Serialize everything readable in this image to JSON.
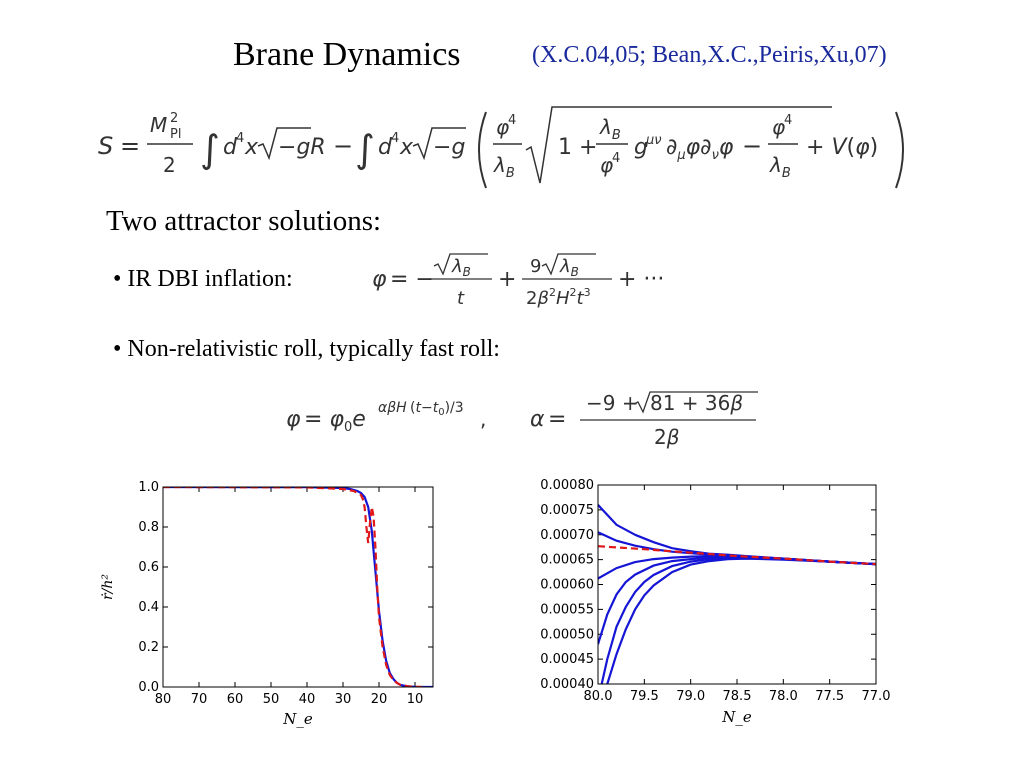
{
  "slide": {
    "title": "Brane Dynamics",
    "citation": "(X.C.04,05; Bean,X.C.,Peiris,Xu,07)",
    "heading": "Two attractor solutions:",
    "bullet1": "• IR DBI inflation:",
    "bullet2": "• Non-relativistic roll, typically fast roll:"
  },
  "equations": {
    "action": "S = (M_Pl^2/2) ∫ d^4x √(−g) R − ∫ d^4x √(−g) ( (φ^4/λ_B) √(1 + (λ_B/φ^4) g^{μν} ∂_μφ ∂_νφ) − φ^4/λ_B + V(φ) )",
    "ir_dbi": "φ = −√λ_B / t + 9√λ_B / (2β^2 H^2 t^3) + ···",
    "nonrel_phi": "φ = φ_0 e^{αβH(t−t_0)/3} ,",
    "nonrel_alpha": "α = (−9 + √(81 + 36β)) / (2β)"
  },
  "chart_data": [
    {
      "type": "line",
      "xlabel": "N_e",
      "ylabel": "ṙ/h²",
      "xlim": [
        80,
        5
      ],
      "ylim": [
        0.0,
        1.0
      ],
      "x_ticks": [
        "80",
        "70",
        "60",
        "50",
        "40",
        "30",
        "20",
        "10"
      ],
      "y_ticks": [
        "0.0",
        "0.2",
        "0.4",
        "0.6",
        "0.8",
        "1.0"
      ],
      "grid": false,
      "series": [
        {
          "style": "solid",
          "color": "#1515d6",
          "x": [
            80,
            40,
            30,
            28,
            26,
            25,
            24,
            23,
            22,
            21,
            20,
            19,
            18,
            17,
            16,
            15,
            14,
            12,
            10,
            8,
            5
          ],
          "y": [
            1.0,
            0.999,
            0.995,
            0.99,
            0.98,
            0.97,
            0.95,
            0.9,
            0.78,
            0.58,
            0.38,
            0.23,
            0.13,
            0.07,
            0.04,
            0.02,
            0.01,
            0.003,
            0.001,
            0.0,
            0.0
          ]
        },
        {
          "style": "dashed",
          "color": "#e01818",
          "x": [
            80,
            40,
            30,
            27,
            25,
            24.5,
            24,
            23.5,
            23,
            22.5,
            22,
            21.5,
            21,
            20.5,
            20,
            19,
            18,
            17,
            16,
            15,
            14,
            12,
            10,
            8
          ],
          "y": [
            1.0,
            0.998,
            0.99,
            0.98,
            0.96,
            0.94,
            0.9,
            0.8,
            0.72,
            0.82,
            0.9,
            0.85,
            0.7,
            0.5,
            0.35,
            0.2,
            0.11,
            0.06,
            0.035,
            0.02,
            0.01,
            0.004,
            0.001,
            0.0
          ]
        }
      ]
    },
    {
      "type": "line",
      "xlabel": "N_e",
      "xlim": [
        80.0,
        77.0
      ],
      "ylim": [
        0.0004,
        0.0008
      ],
      "x_ticks": [
        "80.0",
        "79.5",
        "79.0",
        "78.5",
        "78.0",
        "77.5",
        "77.0"
      ],
      "y_ticks": [
        "0.00040",
        "0.00045",
        "0.00050",
        "0.00055",
        "0.00060",
        "0.00065",
        "0.00070",
        "0.00075",
        "0.00080"
      ],
      "grid": false,
      "series": [
        {
          "style": "solid",
          "color": "#1515d6",
          "x": [
            80.0,
            79.8,
            79.6,
            79.4,
            79.2,
            79.0,
            78.8,
            78.6,
            78.4,
            78.0,
            77.5,
            77.0
          ],
          "y": [
            0.00076,
            0.00072,
            0.0007,
            0.000685,
            0.000673,
            0.000667,
            0.000662,
            0.00066,
            0.000657,
            0.000652,
            0.000646,
            0.000641
          ]
        },
        {
          "style": "solid",
          "color": "#1515d6",
          "x": [
            80.0,
            79.8,
            79.6,
            79.4,
            79.2,
            79.0,
            78.8,
            78.6,
            78.4,
            78.0,
            77.5,
            77.0
          ],
          "y": [
            0.000705,
            0.000688,
            0.000678,
            0.000671,
            0.000666,
            0.000663,
            0.00066,
            0.000658,
            0.000656,
            0.000652,
            0.000646,
            0.000641
          ]
        },
        {
          "style": "solid",
          "color": "#1515d6",
          "x": [
            80.0,
            79.8,
            79.6,
            79.4,
            79.2,
            79.0,
            78.8,
            78.6,
            78.4,
            78.0,
            77.5,
            77.0
          ],
          "y": [
            0.000612,
            0.000633,
            0.000645,
            0.000651,
            0.000654,
            0.000656,
            0.000657,
            0.000657,
            0.000655,
            0.000652,
            0.000646,
            0.000641
          ]
        },
        {
          "style": "solid",
          "color": "#1515d6",
          "x": [
            80.0,
            79.9,
            79.8,
            79.7,
            79.6,
            79.4,
            79.2,
            79.0,
            78.8,
            78.6,
            78.4,
            78.0,
            77.5,
            77.0
          ],
          "y": [
            0.00048,
            0.00054,
            0.00058,
            0.000605,
            0.00062,
            0.000638,
            0.000647,
            0.000651,
            0.000654,
            0.000655,
            0.000654,
            0.000651,
            0.000646,
            0.000641
          ]
        },
        {
          "style": "solid",
          "color": "#1515d6",
          "x": [
            79.96,
            79.9,
            79.8,
            79.7,
            79.6,
            79.5,
            79.4,
            79.2,
            79.0,
            78.8,
            78.6,
            78.4,
            78.0,
            77.5,
            77.0
          ],
          "y": [
            0.0004,
            0.00045,
            0.000515,
            0.000555,
            0.000585,
            0.000605,
            0.000619,
            0.000637,
            0.000646,
            0.000651,
            0.000653,
            0.000653,
            0.000651,
            0.000646,
            0.000641
          ]
        },
        {
          "style": "solid",
          "color": "#1515d6",
          "x": [
            79.9,
            79.8,
            79.7,
            79.6,
            79.5,
            79.4,
            79.2,
            79.0,
            78.8,
            78.6,
            78.4,
            78.0,
            77.5,
            77.0
          ],
          "y": [
            0.0004,
            0.00046,
            0.00051,
            0.00055,
            0.000578,
            0.000598,
            0.000625,
            0.00064,
            0.000647,
            0.000651,
            0.000652,
            0.00065,
            0.000646,
            0.000641
          ]
        },
        {
          "style": "dashed",
          "color": "#e01818",
          "x": [
            80.0,
            79.5,
            79.0,
            78.5,
            78.0,
            77.5,
            77.0
          ],
          "y": [
            0.000677,
            0.000671,
            0.000664,
            0.000657,
            0.000652,
            0.000646,
            0.000641
          ]
        }
      ]
    }
  ]
}
